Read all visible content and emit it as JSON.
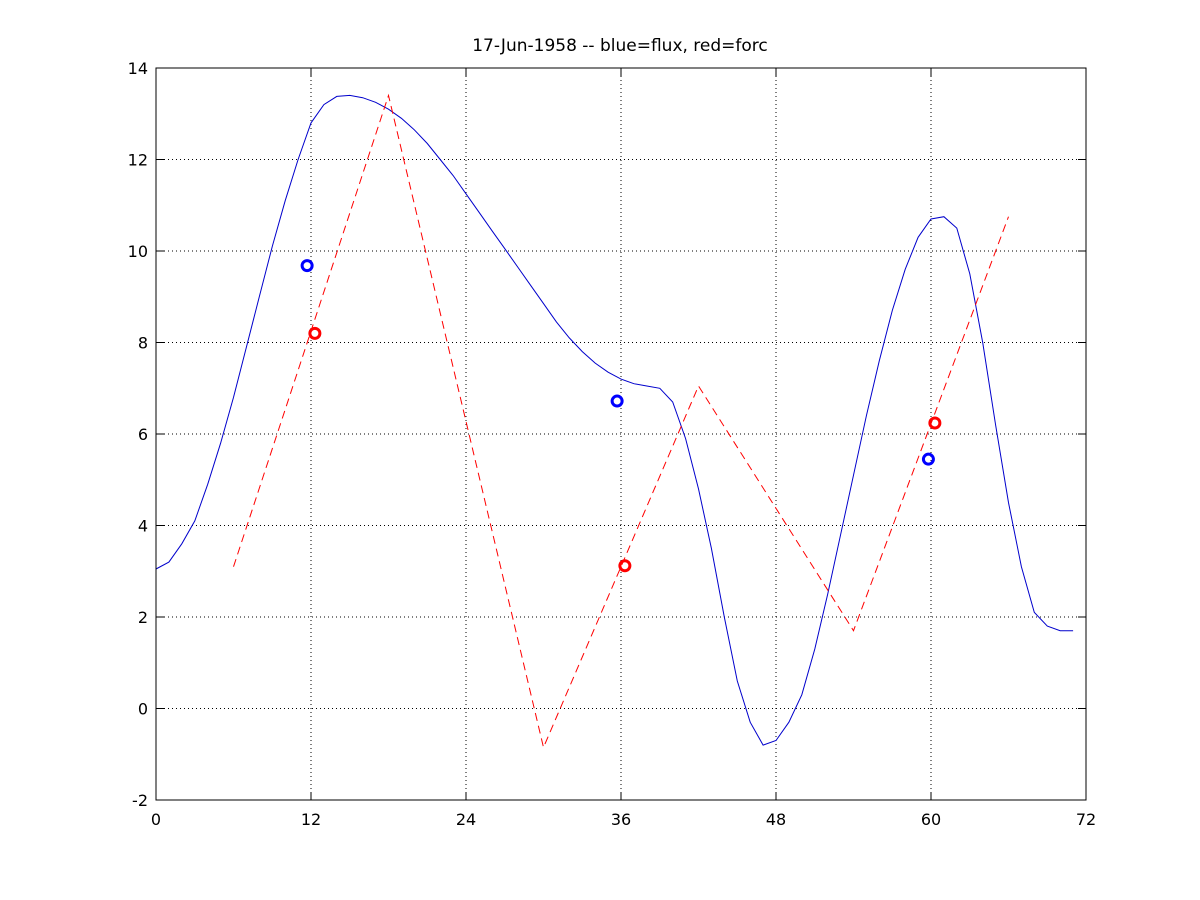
{
  "chart_data": {
    "type": "line",
    "title": "17-Jun-1958 -- blue=flux, red=forc",
    "xlabel": "",
    "ylabel": "",
    "xlim": [
      0,
      72
    ],
    "ylim": [
      -2,
      14
    ],
    "xticks": [
      0,
      12,
      24,
      36,
      48,
      60,
      72
    ],
    "yticks": [
      -2,
      0,
      2,
      4,
      6,
      8,
      10,
      12,
      14
    ],
    "grid": true,
    "colors": {
      "blue": "#0000ff",
      "red": "#ff0000",
      "grid": "#000000"
    },
    "series": [
      {
        "type": "line",
        "style": "solid",
        "color": "#0000cc",
        "x": [
          0,
          1,
          2,
          3,
          4,
          5,
          6,
          7,
          8,
          9,
          10,
          11,
          12,
          13,
          14,
          15,
          16,
          17,
          18,
          19,
          20,
          21,
          22,
          23,
          24,
          25,
          26,
          27,
          28,
          29,
          30,
          31,
          32,
          33,
          34,
          35,
          36,
          37,
          38,
          39,
          40,
          41,
          42,
          43,
          44,
          45,
          46,
          47,
          48,
          49,
          50,
          51,
          52,
          53,
          54,
          55,
          56,
          57,
          58,
          59,
          60,
          61,
          62,
          63,
          64,
          65,
          66,
          67,
          68,
          69,
          70,
          71
        ],
        "values": [
          3.05,
          3.2,
          3.6,
          4.1,
          4.9,
          5.8,
          6.8,
          7.9,
          9.0,
          10.1,
          11.1,
          12.0,
          12.8,
          13.2,
          13.38,
          13.4,
          13.35,
          13.25,
          13.1,
          12.9,
          12.65,
          12.35,
          12.0,
          11.65,
          11.25,
          10.85,
          10.45,
          10.05,
          9.65,
          9.25,
          8.85,
          8.45,
          8.1,
          7.8,
          7.55,
          7.35,
          7.2,
          7.1,
          7.05,
          7.0,
          6.7,
          5.9,
          4.8,
          3.5,
          2.0,
          0.6,
          -0.3,
          -0.8,
          -0.7,
          -0.3,
          0.3,
          1.3,
          2.5,
          3.8,
          5.1,
          6.4,
          7.6,
          8.7,
          9.6,
          10.3,
          10.7,
          10.75,
          10.5,
          9.5,
          8.0,
          6.2,
          4.5,
          3.1,
          2.1,
          1.8,
          1.7,
          1.7
        ]
      },
      {
        "type": "line",
        "style": "dashed",
        "color": "#ff0000",
        "x": [
          6,
          18,
          30,
          42,
          54,
          66
        ],
        "values": [
          3.1,
          13.4,
          -0.85,
          7.05,
          1.7,
          10.75
        ]
      },
      {
        "type": "scatter",
        "marker": "circle",
        "color": "#0000ff",
        "x": [
          11.7,
          35.7,
          59.8
        ],
        "values": [
          9.68,
          6.72,
          5.45
        ]
      },
      {
        "type": "scatter",
        "marker": "circle",
        "color": "#ff0000",
        "x": [
          12.3,
          36.3,
          60.3
        ],
        "values": [
          8.2,
          3.12,
          6.24
        ]
      }
    ]
  }
}
